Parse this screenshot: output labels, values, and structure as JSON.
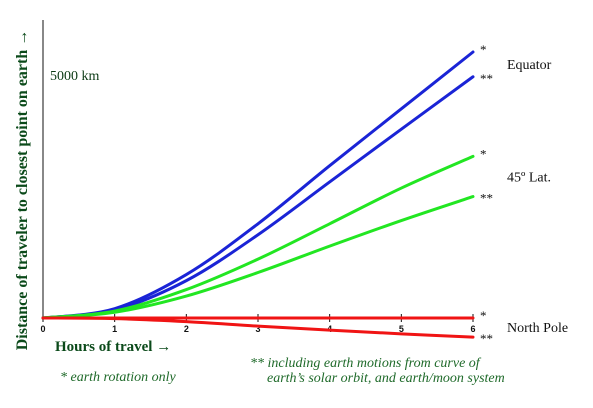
{
  "chart_data": {
    "type": "line",
    "xlabel": "Hours of travel →",
    "ylabel": "Distance of traveler to closest point on earth →",
    "scale_label": "5000 km",
    "x_ticks": [
      "0",
      "1",
      "2",
      "3",
      "4",
      "5",
      "6"
    ],
    "xlim": [
      0,
      6
    ],
    "ylim": [
      -600,
      6800
    ],
    "grid": false,
    "groups": [
      {
        "label": "Equator",
        "color": "#1a24d6"
      },
      {
        "label": "45º Lat.",
        "color": "#22e622"
      },
      {
        "label": "North Pole",
        "color": "#f01414"
      }
    ],
    "series": [
      {
        "group": "Equator",
        "marker": "*",
        "color": "#1a24d6",
        "x": [
          0,
          1,
          2,
          3,
          4,
          5,
          6
        ],
        "y": [
          0,
          230,
          1070,
          2320,
          3750,
          5150,
          6550
        ]
      },
      {
        "group": "Equator",
        "marker": "**",
        "color": "#1a24d6",
        "x": [
          0,
          1,
          2,
          3,
          4,
          5,
          6
        ],
        "y": [
          0,
          200,
          920,
          2050,
          3350,
          4650,
          5940
        ]
      },
      {
        "group": "45º Lat.",
        "marker": "*",
        "color": "#22e622",
        "x": [
          0,
          1,
          2,
          3,
          4,
          5,
          6
        ],
        "y": [
          0,
          170,
          700,
          1450,
          2320,
          3200,
          3980
        ]
      },
      {
        "group": "45º Lat.",
        "marker": "**",
        "color": "#22e622",
        "x": [
          0,
          1,
          2,
          3,
          4,
          5,
          6
        ],
        "y": [
          0,
          140,
          540,
          1120,
          1770,
          2400,
          2990
        ]
      },
      {
        "group": "North Pole",
        "marker": "*",
        "color": "#f01414",
        "x": [
          0,
          1,
          2,
          3,
          4,
          5,
          6
        ],
        "y": [
          0,
          0,
          0,
          0,
          0,
          0,
          0
        ]
      },
      {
        "group": "North Pole",
        "marker": "**",
        "color": "#f01414",
        "x": [
          0,
          1,
          2,
          3,
          4,
          5,
          6
        ],
        "y": [
          0,
          -15,
          -90,
          -200,
          -300,
          -390,
          -470
        ]
      }
    ],
    "annotations": {
      "note_single": "* earth rotation only",
      "note_double_line1": "** including earth motions from curve of",
      "note_double_line2": "earth’s solar orbit, and earth/moon system"
    }
  }
}
